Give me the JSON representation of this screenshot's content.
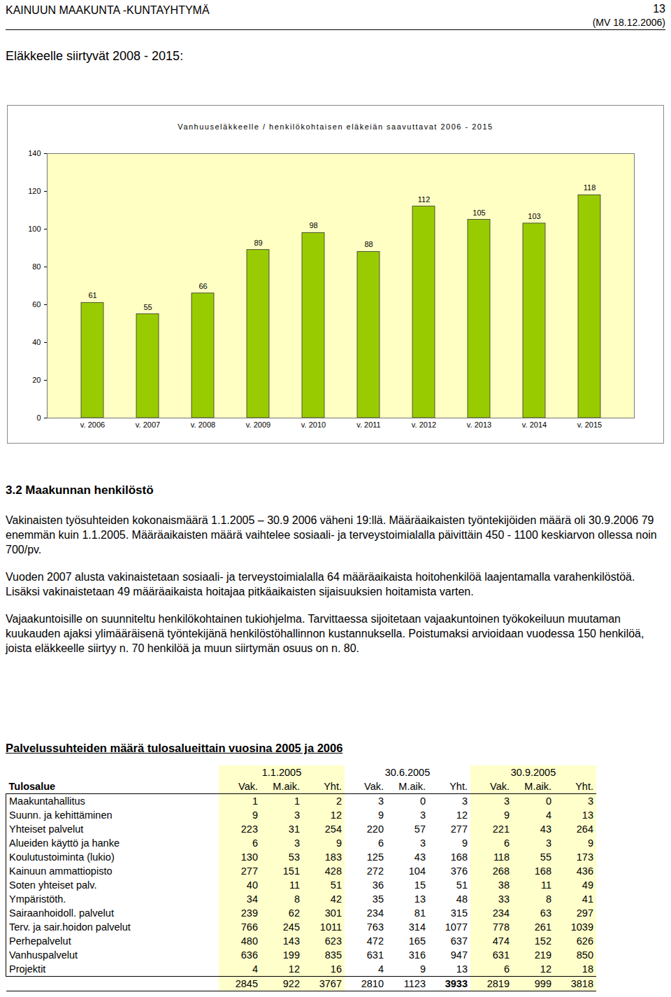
{
  "header": {
    "left": "KAINUUN MAAKUNTA -KUNTAYHTYMÄ",
    "page": "13",
    "date": "(MV 18.12.2006)"
  },
  "section_title": "Eläkkeelle siirtyvät 2008 - 2015:",
  "chart_data": {
    "type": "bar",
    "title": "Vanhuuseläkkeelle / henkilökohtaisen eläkeiän saavuttavat 2006 - 2015",
    "categories": [
      "v. 2006",
      "v. 2007",
      "v. 2008",
      "v. 2009",
      "v. 2010",
      "v. 2011",
      "v. 2012",
      "v. 2013",
      "v. 2014",
      "v. 2015"
    ],
    "values": [
      61,
      55,
      66,
      89,
      98,
      88,
      112,
      105,
      103,
      118
    ],
    "color": "#99cc00",
    "ylim": [
      0,
      140
    ],
    "yticks": [
      0,
      20,
      40,
      60,
      80,
      100,
      120,
      140
    ],
    "grid": false,
    "data_labels": true
  },
  "heading": "3.2 Maakunnan henkilöstö",
  "paragraphs": [
    "Vakinaisten työsuhteiden kokonaismäärä 1.1.2005 – 30.9 2006 väheni 19:llä. Määräaikaisten työntekijöiden määrä oli 30.9.2006 79 enemmän kuin 1.1.2005. Määräaikaisten määrä vaihtelee sosiaali- ja terveystoimialalla päivittäin 450 - 1100 keskiarvon ollessa noin 700/pv.",
    "Vuoden 2007 alusta vakinaistetaan sosiaali- ja terveystoimialalla 64 määräaikaista hoitohenkilöä laajentamalla varahenkilöstöä. Lisäksi vakinaistetaan 49 määräaikaista hoitajaa pitkäaikaisten sijaisuuksien hoitamista varten.",
    "Vajaakuntoisille on suunniteltu henkilökohtainen tukiohjelma. Tarvittaessa sijoitetaan vajaakuntoinen työkokeiluun muutaman kuukauden ajaksi ylimääräisenä työntekijänä henkilöstöhallinnon kustannuksella. Poistumaksi arvioidaan vuodessa 150 henkilöä, joista eläkkeelle siirtyy n. 70 henkilöä ja muun siirtymän osuus on n. 80."
  ],
  "table_title": "Palvelussuhteiden määrä tulosalueittain vuosina 2005 ja 2006",
  "table": {
    "first_header": "Tulosalue",
    "periods": [
      "1.1.2005",
      "30.6.2005",
      "30.9.2005"
    ],
    "subheaders": [
      "Vak.",
      "M.aik.",
      "Yht."
    ],
    "rows": [
      [
        "Maakuntahallitus",
        1,
        1,
        2,
        3,
        0,
        3,
        3,
        0,
        3
      ],
      [
        "Suunn. ja kehittäminen",
        9,
        3,
        12,
        9,
        3,
        12,
        9,
        4,
        13
      ],
      [
        "Yhteiset palvelut",
        223,
        31,
        254,
        220,
        57,
        277,
        221,
        43,
        264
      ],
      [
        "Alueiden käyttö ja hanke",
        6,
        3,
        9,
        6,
        3,
        9,
        6,
        3,
        9
      ],
      [
        "Koulutustoiminta (lukio)",
        130,
        53,
        183,
        125,
        43,
        168,
        118,
        55,
        173
      ],
      [
        "Kainuun ammattiopisto",
        277,
        151,
        428,
        272,
        104,
        376,
        268,
        168,
        436
      ],
      [
        "Soten yhteiset palv.",
        40,
        11,
        51,
        36,
        15,
        51,
        38,
        11,
        49
      ],
      [
        "Ympäristöth.",
        34,
        8,
        42,
        35,
        13,
        48,
        33,
        8,
        41
      ],
      [
        "Sairaanhoidoll. palvelut",
        239,
        62,
        301,
        234,
        81,
        315,
        234,
        63,
        297
      ],
      [
        "Terv. ja sair.hoidon palvelut",
        766,
        245,
        1011,
        763,
        314,
        1077,
        778,
        261,
        1039
      ],
      [
        "Perhepalvelut",
        480,
        143,
        623,
        472,
        165,
        637,
        474,
        152,
        626
      ],
      [
        "Vanhuspalvelut",
        636,
        199,
        835,
        631,
        316,
        947,
        631,
        219,
        850
      ],
      [
        "Projektit",
        4,
        12,
        16,
        4,
        9,
        13,
        6,
        12,
        18
      ]
    ],
    "total": [
      2845,
      922,
      3767,
      2810,
      1123,
      3933,
      2819,
      999,
      3818
    ]
  }
}
